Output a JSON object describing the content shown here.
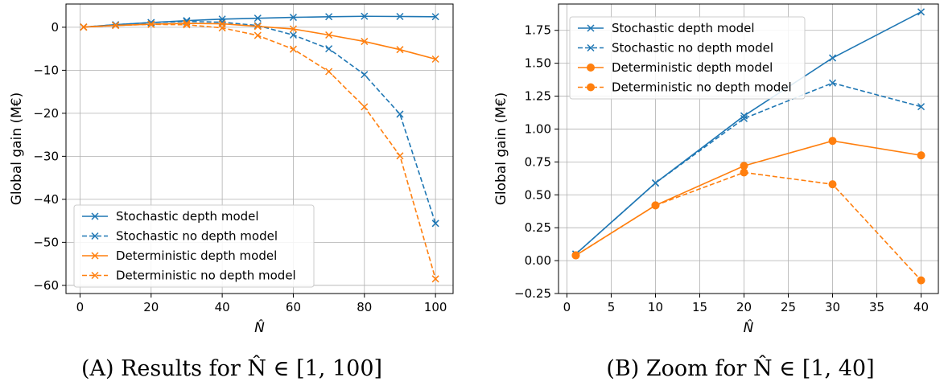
{
  "colors": {
    "blue": "#1f77b4",
    "orange": "#ff7f0e"
  },
  "chart_data": [
    {
      "type": "line",
      "caption": "(A) Results for N̂ ∈ [1, 100]",
      "xlabel": "N̂",
      "ylabel": "Global gain (M€)",
      "xlim": [
        -3.95,
        104.95
      ],
      "ylim": [
        -61.9,
        5.4
      ],
      "xticks": [
        0,
        20,
        40,
        60,
        80,
        100
      ],
      "xtick_labels": [
        "0",
        "20",
        "40",
        "60",
        "80",
        "100"
      ],
      "yticks": [
        0,
        -10,
        -20,
        -30,
        -40,
        -50,
        -60
      ],
      "ytick_labels": [
        "0",
        "−10",
        "−20",
        "−30",
        "−40",
        "−50",
        "−60"
      ],
      "legend_position": "lower-left",
      "x": [
        1,
        10,
        20,
        30,
        40,
        50,
        60,
        70,
        80,
        90,
        100
      ],
      "series": [
        {
          "name": "Stochastic depth model",
          "color": "#1f77b4",
          "dashed": false,
          "marker": "x",
          "values": [
            0.05,
            0.59,
            1.1,
            1.54,
            1.89,
            2.1,
            2.3,
            2.45,
            2.55,
            2.5,
            2.45
          ]
        },
        {
          "name": "Stochastic no depth model",
          "color": "#1f77b4",
          "dashed": true,
          "marker": "x",
          "values": [
            0.05,
            0.59,
            1.08,
            1.35,
            1.17,
            0.4,
            -1.8,
            -5.0,
            -11.0,
            -20.2,
            -45.6
          ]
        },
        {
          "name": "Deterministic depth model",
          "color": "#ff7f0e",
          "dashed": false,
          "marker": "x",
          "values": [
            0.04,
            0.42,
            0.72,
            0.91,
            0.8,
            0.2,
            -0.4,
            -1.8,
            -3.3,
            -5.2,
            -7.4
          ]
        },
        {
          "name": "Deterministic no depth model",
          "color": "#ff7f0e",
          "dashed": true,
          "marker": "x",
          "values": [
            0.04,
            0.42,
            0.67,
            0.58,
            -0.15,
            -1.9,
            -5.1,
            -10.3,
            -18.5,
            -29.9,
            -58.5
          ]
        }
      ]
    },
    {
      "type": "line",
      "caption": "(B) Zoom for N̂ ∈ [1, 40]",
      "xlabel": "N̂",
      "ylabel": "Global gain (M€)",
      "xlim": [
        -0.95,
        41.95
      ],
      "ylim": [
        -0.25,
        1.95
      ],
      "xticks": [
        0,
        5,
        10,
        15,
        20,
        25,
        30,
        35,
        40
      ],
      "xtick_labels": [
        "0",
        "5",
        "10",
        "15",
        "20",
        "25",
        "30",
        "35",
        "40"
      ],
      "yticks": [
        -0.25,
        0,
        0.25,
        0.5,
        0.75,
        1.0,
        1.25,
        1.5,
        1.75
      ],
      "ytick_labels": [
        "−0.25",
        "0.00",
        "0.25",
        "0.50",
        "0.75",
        "1.00",
        "1.25",
        "1.50",
        "1.75"
      ],
      "legend_position": "upper-left",
      "x": [
        1,
        10,
        20,
        30,
        40
      ],
      "series": [
        {
          "name": "Stochastic depth model",
          "color": "#1f77b4",
          "dashed": false,
          "marker": "x",
          "values": [
            0.05,
            0.59,
            1.1,
            1.54,
            1.89
          ]
        },
        {
          "name": "Stochastic no depth model",
          "color": "#1f77b4",
          "dashed": true,
          "marker": "x",
          "values": [
            0.05,
            0.59,
            1.08,
            1.35,
            1.17
          ]
        },
        {
          "name": "Deterministic depth model",
          "color": "#ff7f0e",
          "dashed": false,
          "marker": "o",
          "values": [
            0.04,
            0.42,
            0.72,
            0.91,
            0.8
          ]
        },
        {
          "name": "Deterministic no depth model",
          "color": "#ff7f0e",
          "dashed": true,
          "marker": "o",
          "values": [
            0.04,
            0.42,
            0.67,
            0.58,
            -0.15
          ]
        }
      ]
    }
  ]
}
